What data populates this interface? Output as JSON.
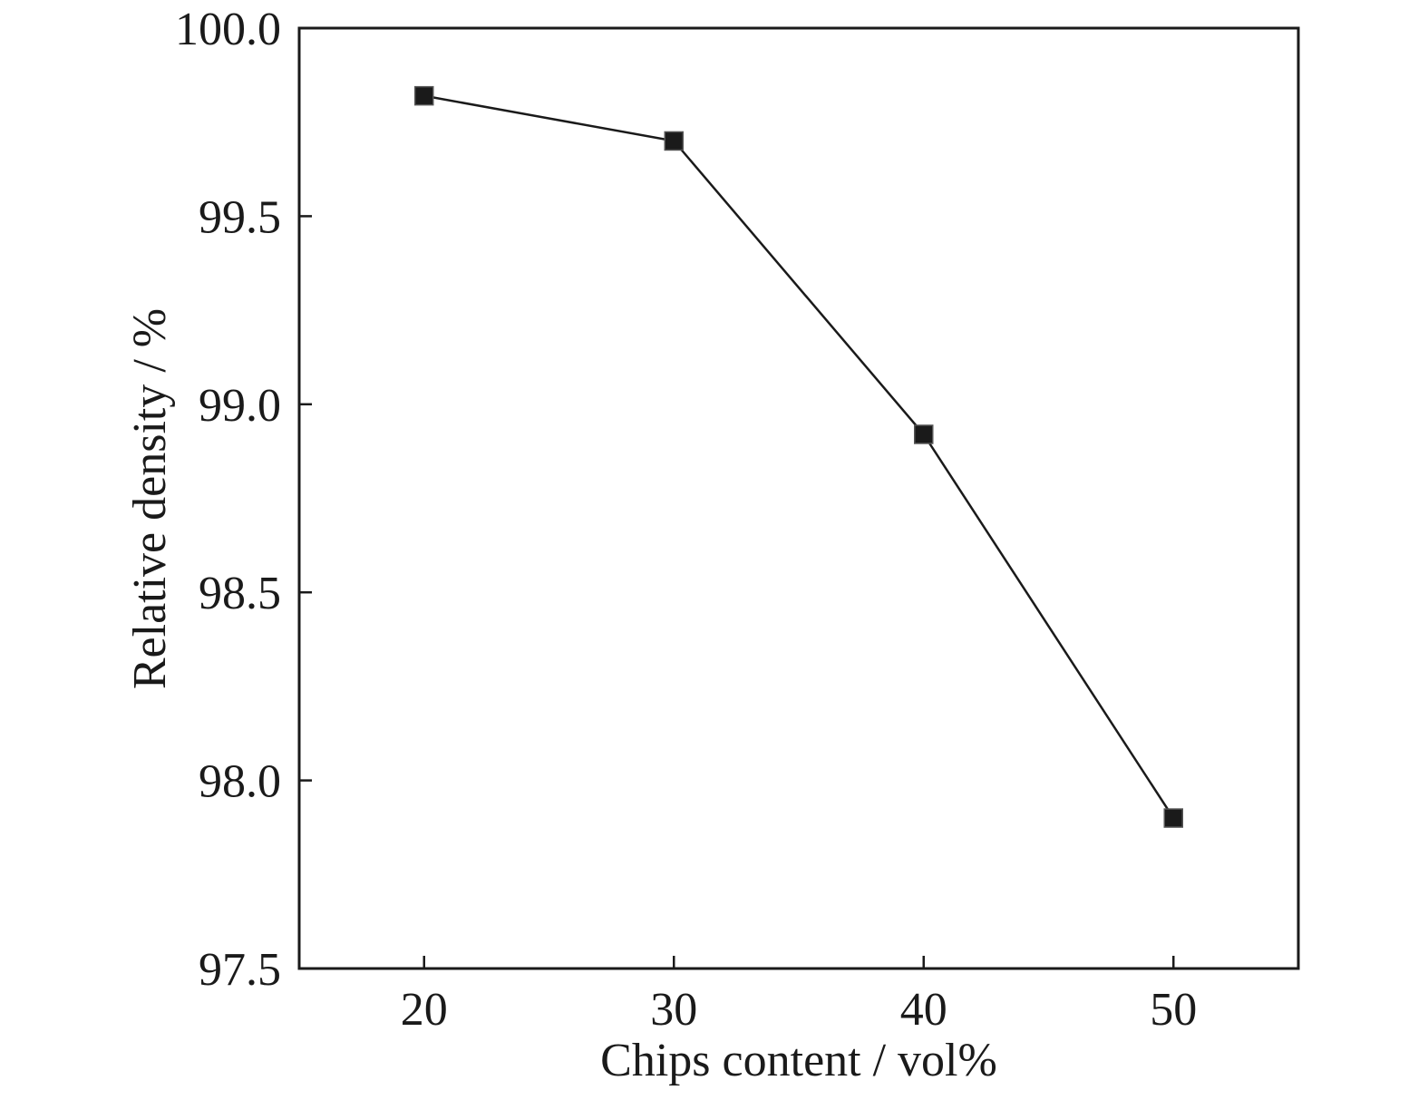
{
  "chart_data": {
    "type": "line",
    "title": "",
    "xlabel": "Chips content / vol%",
    "ylabel": "Relative density / %",
    "xlim": [
      15,
      55
    ],
    "ylim": [
      97.5,
      100.0
    ],
    "xticks": [
      20,
      30,
      40,
      50
    ],
    "xtick_labels": [
      "20",
      "30",
      "40",
      "50"
    ],
    "yticks": [
      97.5,
      98.0,
      98.5,
      99.0,
      99.5,
      100.0
    ],
    "ytick_labels": [
      "97.5",
      "98.0",
      "98.5",
      "99.0",
      "99.5",
      "100.0"
    ],
    "grid": false,
    "legend": "none",
    "series": [
      {
        "x": [
          20,
          30,
          40,
          50
        ],
        "y": [
          99.82,
          99.7,
          98.92,
          97.9
        ],
        "marker": "square",
        "color": "#1a1a1a"
      }
    ]
  }
}
